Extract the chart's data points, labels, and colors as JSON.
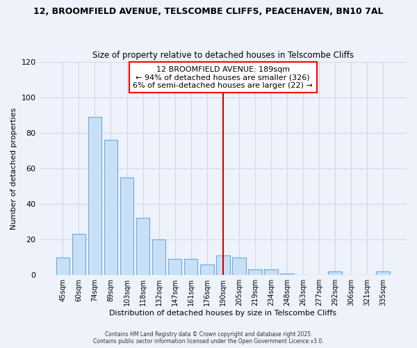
{
  "title1": "12, BROOMFIELD AVENUE, TELSCOMBE CLIFFS, PEACEHAVEN, BN10 7AL",
  "title2": "Size of property relative to detached houses in Telscombe Cliffs",
  "xlabel": "Distribution of detached houses by size in Telscombe Cliffs",
  "ylabel": "Number of detached properties",
  "categories": [
    "45sqm",
    "60sqm",
    "74sqm",
    "89sqm",
    "103sqm",
    "118sqm",
    "132sqm",
    "147sqm",
    "161sqm",
    "176sqm",
    "190sqm",
    "205sqm",
    "219sqm",
    "234sqm",
    "248sqm",
    "263sqm",
    "277sqm",
    "292sqm",
    "306sqm",
    "321sqm",
    "335sqm"
  ],
  "values": [
    10,
    23,
    89,
    76,
    55,
    32,
    20,
    9,
    9,
    6,
    11,
    10,
    3,
    3,
    1,
    0,
    0,
    2,
    0,
    0,
    2
  ],
  "bar_color": "#c8dff5",
  "bar_edge_color": "#6aaad8",
  "vline_x_index": 10,
  "vline_color": "#cc0000",
  "ylim": [
    0,
    120
  ],
  "yticks": [
    0,
    20,
    40,
    60,
    80,
    100,
    120
  ],
  "annotation_title": "12 BROOMFIELD AVENUE: 189sqm",
  "annotation_line1": "← 94% of detached houses are smaller (326)",
  "annotation_line2": "6% of semi-detached houses are larger (22) →",
  "footer1": "Contains HM Land Registry data © Crown copyright and database right 2025.",
  "footer2": "Contains public sector information licensed under the Open Government Licence v3.0.",
  "background_color": "#eef2fb",
  "grid_color": "#d0d8ee",
  "title_fontsize": 9,
  "subtitle_fontsize": 8.5
}
